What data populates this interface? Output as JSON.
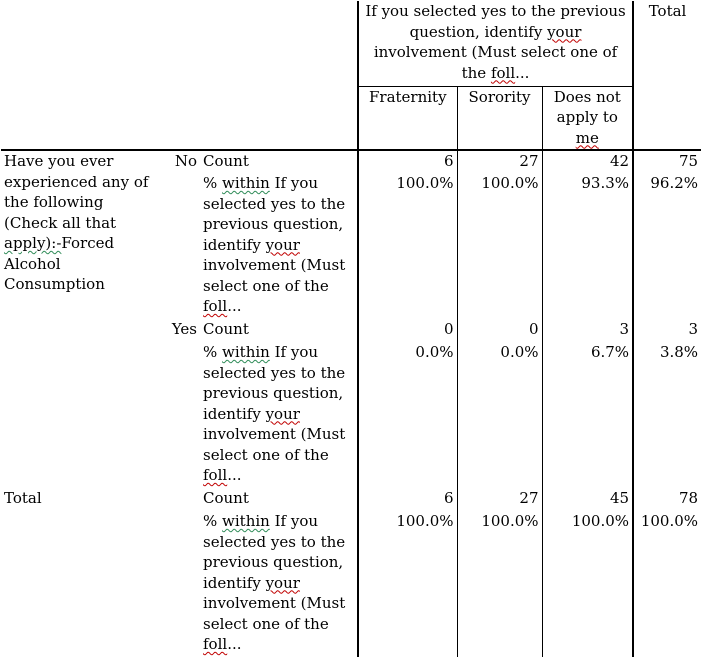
{
  "header": {
    "spanning_label": "If you selected yes to the previous question, identify your involvement (Must select one of the foll...",
    "total_label": "Total",
    "columns": [
      "Fraternity",
      "Sorority",
      "Does not apply to me"
    ]
  },
  "row_variable": "Have you ever experienced any of the following (Check all that apply):-Forced Alcohol Consumption",
  "stat_labels": {
    "count": "Count",
    "pct_within": "% within If you selected yes to the previous question, identify your involvement (Must select one of the foll..."
  },
  "rows": [
    {
      "group": "No",
      "count": [
        "6",
        "27",
        "42",
        "75"
      ],
      "pct": [
        "100.0%",
        "100.0%",
        "93.3%",
        "96.2%"
      ]
    },
    {
      "group": "Yes",
      "count": [
        "0",
        "0",
        "3",
        "3"
      ],
      "pct": [
        "0.0%",
        "0.0%",
        "6.7%",
        "3.8%"
      ]
    }
  ],
  "total": {
    "label": "Total",
    "count": [
      "6",
      "27",
      "45",
      "78"
    ],
    "pct": [
      "100.0%",
      "100.0%",
      "100.0%",
      "100.0%"
    ]
  }
}
